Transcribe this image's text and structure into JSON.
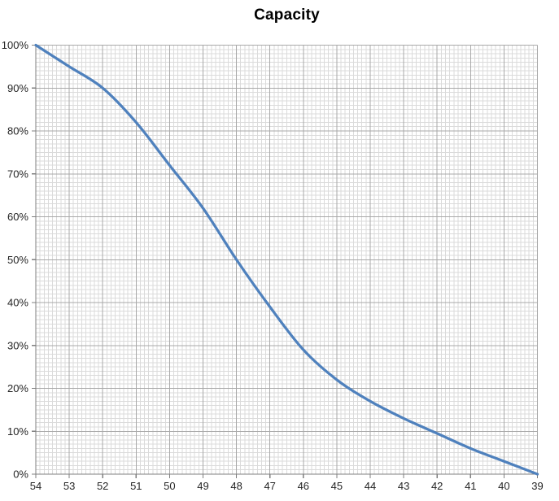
{
  "chart_data": {
    "type": "line",
    "title": "Capacity",
    "categories": [
      54,
      53,
      52,
      51,
      50,
      49,
      48,
      47,
      46,
      45,
      44,
      43,
      42,
      41,
      40,
      39
    ],
    "series": [
      {
        "name": "Capacity",
        "color": "#4F81BD",
        "values": [
          100,
          95,
          90,
          82,
          72,
          62,
          50,
          39,
          29,
          22,
          17,
          13,
          9.5,
          6,
          3,
          0
        ]
      }
    ],
    "xlabel": "",
    "ylabel": "",
    "ylim": [
      0,
      100
    ],
    "x_tick_labels": [
      "54",
      "53",
      "52",
      "51",
      "50",
      "49",
      "48",
      "47",
      "46",
      "45",
      "44",
      "43",
      "42",
      "41",
      "40",
      "39"
    ],
    "y_tick_labels": [
      "0%",
      "10%",
      "20%",
      "30%",
      "40%",
      "50%",
      "60%",
      "70%",
      "80%",
      "90%",
      "100%"
    ],
    "x_axis_direction": "descending",
    "smooth": true,
    "legend_position": "none",
    "grid": {
      "minor": true,
      "major": true,
      "minor_per_major_x": 8,
      "minor_per_major_y": 10,
      "minor_color": "#DBDBDB",
      "major_color": "#A9A9A9",
      "axis_color": "#7F7F7F"
    },
    "line_width": 3.25,
    "axis_label_color": "#262626",
    "title_color": "#000000"
  }
}
